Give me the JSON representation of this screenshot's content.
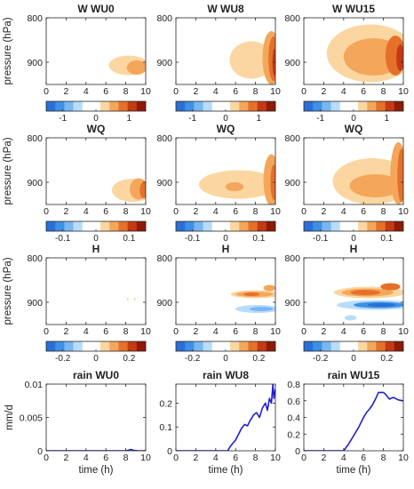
{
  "figure": {
    "colorbar_colors": [
      "#2a6fd6",
      "#3f8fe6",
      "#79b6f2",
      "#b7ddfa",
      "#ffffff",
      "#ffffff",
      "#fbd6a0",
      "#f4a65a",
      "#e5702a",
      "#c43a12",
      "#8e1a06"
    ]
  },
  "chart_data": [
    {
      "type": "heatmap",
      "row": 0,
      "col": 0,
      "title": "W WU0",
      "ylabel": "pressure (hPa)",
      "xlim": [
        0,
        10
      ],
      "ylim": [
        800,
        950
      ],
      "yreverse": true,
      "xticks": [
        "0",
        "2",
        "4",
        "6",
        "8",
        "10"
      ],
      "yticks": [
        "800",
        "900"
      ],
      "colorbar": {
        "range": [
          -1.5,
          1.5
        ],
        "ticks": [
          "-1",
          "0",
          "1"
        ],
        "tick_values": [
          -1,
          0,
          1
        ]
      },
      "blobs": [
        {
          "x": 8.3,
          "y": 907,
          "rx": 2.0,
          "ry": 22,
          "level": 6
        },
        {
          "x": 9.1,
          "y": 912,
          "rx": 1.0,
          "ry": 16,
          "level": 7
        }
      ]
    },
    {
      "type": "heatmap",
      "row": 0,
      "col": 1,
      "title": "W WU8",
      "xlim": [
        0,
        10
      ],
      "ylim": [
        800,
        950
      ],
      "yreverse": true,
      "xticks": [
        "0",
        "2",
        "4",
        "6",
        "8",
        "10"
      ],
      "yticks": [
        "800",
        "900"
      ],
      "colorbar": {
        "range": [
          -1.5,
          1.5
        ],
        "ticks": [
          "-1",
          "0",
          "1"
        ],
        "tick_values": [
          -1,
          0,
          1
        ]
      },
      "blobs": [
        {
          "x": 7.6,
          "y": 895,
          "rx": 2.2,
          "ry": 42,
          "level": 6
        },
        {
          "x": 9.6,
          "y": 890,
          "rx": 0.9,
          "ry": 60,
          "level": 7
        },
        {
          "x": 9.8,
          "y": 892,
          "rx": 0.5,
          "ry": 50,
          "level": 8
        },
        {
          "x": 9.9,
          "y": 900,
          "rx": 0.2,
          "ry": 30,
          "level": 9
        }
      ]
    },
    {
      "type": "heatmap",
      "row": 0,
      "col": 2,
      "title": "W WU15",
      "xlim": [
        0,
        10
      ],
      "ylim": [
        800,
        950
      ],
      "yreverse": true,
      "xticks": [
        "0",
        "2",
        "4",
        "6",
        "8",
        "10"
      ],
      "yticks": [
        "800",
        "900"
      ],
      "colorbar": {
        "range": [
          -1.5,
          1.5
        ],
        "ticks": [
          "-1",
          "0",
          "1"
        ],
        "tick_values": [
          -1,
          0,
          1
        ]
      },
      "blobs": [
        {
          "x": 6.7,
          "y": 880,
          "rx": 4.4,
          "ry": 65,
          "level": 6
        },
        {
          "x": 7.0,
          "y": 888,
          "rx": 3.0,
          "ry": 42,
          "level": 7
        },
        {
          "x": 9.2,
          "y": 885,
          "rx": 1.0,
          "ry": 45,
          "level": 8
        },
        {
          "x": 9.7,
          "y": 890,
          "rx": 0.4,
          "ry": 30,
          "level": 9
        }
      ]
    },
    {
      "type": "heatmap",
      "row": 1,
      "col": 0,
      "title": "WQ",
      "ylabel": "pressure (hPa)",
      "xlim": [
        0,
        10
      ],
      "ylim": [
        800,
        950
      ],
      "yreverse": true,
      "xticks": [
        "0",
        "2",
        "4",
        "6",
        "8",
        "10"
      ],
      "yticks": [
        "800",
        "900"
      ],
      "colorbar": {
        "range": [
          -0.15,
          0.15
        ],
        "ticks": [
          "-0.1",
          "0",
          "0.1"
        ],
        "tick_values": [
          -0.1,
          0,
          0.1
        ]
      },
      "blobs": [
        {
          "x": 8.7,
          "y": 918,
          "rx": 2.1,
          "ry": 26,
          "level": 6
        },
        {
          "x": 9.3,
          "y": 915,
          "rx": 0.9,
          "ry": 24,
          "level": 7
        },
        {
          "x": 9.8,
          "y": 918,
          "rx": 0.4,
          "ry": 18,
          "level": 8
        }
      ]
    },
    {
      "type": "heatmap",
      "row": 1,
      "col": 1,
      "title": "WQ",
      "xlim": [
        0,
        10
      ],
      "ylim": [
        800,
        950
      ],
      "yreverse": true,
      "xticks": [
        "0",
        "2",
        "4",
        "6",
        "8",
        "10"
      ],
      "yticks": [
        "800",
        "900"
      ],
      "colorbar": {
        "range": [
          -0.15,
          0.15
        ],
        "ticks": [
          "-0.1",
          "0",
          "0.1"
        ],
        "tick_values": [
          -0.1,
          0,
          0.1
        ]
      },
      "blobs": [
        {
          "x": 6.3,
          "y": 905,
          "rx": 4.0,
          "ry": 32,
          "level": 6
        },
        {
          "x": 5.9,
          "y": 910,
          "rx": 0.9,
          "ry": 10,
          "level": 7
        },
        {
          "x": 9.6,
          "y": 895,
          "rx": 0.8,
          "ry": 58,
          "level": 7
        },
        {
          "x": 9.85,
          "y": 900,
          "rx": 0.35,
          "ry": 40,
          "level": 8
        }
      ]
    },
    {
      "type": "heatmap",
      "row": 1,
      "col": 2,
      "title": "WQ",
      "xlim": [
        0,
        10
      ],
      "ylim": [
        800,
        950
      ],
      "yreverse": true,
      "xticks": [
        "0",
        "2",
        "4",
        "6",
        "8",
        "10"
      ],
      "yticks": [
        "800",
        "900"
      ],
      "colorbar": {
        "range": [
          -0.15,
          0.15
        ],
        "ticks": [
          "-0.1",
          "0",
          "0.1"
        ],
        "tick_values": [
          -0.1,
          0,
          0.1
        ]
      },
      "blobs": [
        {
          "x": 6.9,
          "y": 898,
          "rx": 4.0,
          "ry": 52,
          "level": 6
        },
        {
          "x": 7.2,
          "y": 908,
          "rx": 2.6,
          "ry": 26,
          "level": 7
        },
        {
          "x": 9.5,
          "y": 880,
          "rx": 0.8,
          "ry": 70,
          "level": 7
        },
        {
          "x": 9.8,
          "y": 885,
          "rx": 0.4,
          "ry": 60,
          "level": 8
        }
      ]
    },
    {
      "type": "heatmap",
      "row": 2,
      "col": 0,
      "title": "H",
      "ylabel": "pressure (hPa)",
      "xlim": [
        0,
        10
      ],
      "ylim": [
        800,
        950
      ],
      "yreverse": true,
      "xticks": [
        "0",
        "2",
        "4",
        "6",
        "8",
        "10"
      ],
      "yticks": [
        "800",
        "900"
      ],
      "colorbar": {
        "range": [
          -0.3,
          0.3
        ],
        "ticks": [
          "-0.2",
          "0",
          "0.2"
        ],
        "tick_values": [
          -0.2,
          0,
          0.2
        ]
      },
      "blobs": [
        {
          "x": 8.2,
          "y": 893,
          "rx": 0.08,
          "ry": 3,
          "level": 6
        },
        {
          "x": 8.9,
          "y": 893,
          "rx": 0.08,
          "ry": 3,
          "level": 6
        }
      ]
    },
    {
      "type": "heatmap",
      "row": 2,
      "col": 1,
      "title": "H",
      "xlim": [
        0,
        10
      ],
      "ylim": [
        800,
        950
      ],
      "yreverse": true,
      "xticks": [
        "0",
        "2",
        "4",
        "6",
        "8",
        "10"
      ],
      "yticks": [
        "800",
        "900"
      ],
      "colorbar": {
        "range": [
          -0.3,
          0.3
        ],
        "ticks": [
          "-0.2",
          "0",
          "0.2"
        ],
        "tick_values": [
          -0.2,
          0,
          0.2
        ]
      },
      "blobs": [
        {
          "x": 8.0,
          "y": 882,
          "rx": 2.5,
          "ry": 9,
          "level": 6
        },
        {
          "x": 7.9,
          "y": 882,
          "rx": 1.9,
          "ry": 6,
          "level": 7
        },
        {
          "x": 7.6,
          "y": 882,
          "rx": 0.8,
          "ry": 4,
          "level": 8
        },
        {
          "x": 9.4,
          "y": 868,
          "rx": 0.6,
          "ry": 7,
          "level": 7
        },
        {
          "x": 8.2,
          "y": 915,
          "rx": 2.2,
          "ry": 9,
          "level": 3
        },
        {
          "x": 8.6,
          "y": 915,
          "rx": 1.2,
          "ry": 5,
          "level": 2
        }
      ]
    },
    {
      "type": "heatmap",
      "row": 2,
      "col": 2,
      "title": "H",
      "xlim": [
        0,
        10
      ],
      "ylim": [
        800,
        950
      ],
      "yreverse": true,
      "xticks": [
        "0",
        "2",
        "4",
        "6",
        "8",
        "10"
      ],
      "yticks": [
        "800",
        "900"
      ],
      "colorbar": {
        "range": [
          -0.3,
          0.3
        ],
        "ticks": [
          "-0.2",
          "0",
          "0.2"
        ],
        "tick_values": [
          -0.2,
          0,
          0.2
        ]
      },
      "blobs": [
        {
          "x": 6.6,
          "y": 878,
          "rx": 3.6,
          "ry": 13,
          "level": 6
        },
        {
          "x": 6.4,
          "y": 878,
          "rx": 2.6,
          "ry": 9,
          "level": 7
        },
        {
          "x": 6.2,
          "y": 878,
          "rx": 1.5,
          "ry": 6,
          "level": 8
        },
        {
          "x": 8.7,
          "y": 865,
          "rx": 1.0,
          "ry": 8,
          "level": 8
        },
        {
          "x": 7.3,
          "y": 906,
          "rx": 4.0,
          "ry": 11,
          "level": 3
        },
        {
          "x": 7.6,
          "y": 906,
          "rx": 2.6,
          "ry": 7,
          "level": 1
        },
        {
          "x": 7.8,
          "y": 906,
          "rx": 1.4,
          "ry": 4,
          "level": 0
        },
        {
          "x": 4.7,
          "y": 935,
          "rx": 0.6,
          "ry": 6,
          "level": 3
        }
      ]
    },
    {
      "type": "line",
      "row": 3,
      "col": 0,
      "title": "rain WU0",
      "xlabel": "time (h)",
      "ylabel": "mm/d",
      "xlim": [
        0,
        10
      ],
      "ylim": [
        0,
        0.01
      ],
      "xticks": [
        "0",
        "2",
        "4",
        "6",
        "8",
        "10"
      ],
      "yticks": [
        "0",
        "0.005",
        "0.01"
      ],
      "ytick_values": [
        0,
        0.005,
        0.01
      ],
      "x": [
        0,
        8.0,
        8.3,
        8.5,
        8.8,
        9.2,
        9.6,
        10
      ],
      "y": [
        0,
        0,
        0.0001,
        0.0002,
        5e-05,
        0,
        0,
        0
      ]
    },
    {
      "type": "line",
      "row": 3,
      "col": 1,
      "title": "rain WU8",
      "xlabel": "time (h)",
      "xlim": [
        0,
        10
      ],
      "ylim": [
        0,
        0.28
      ],
      "xticks": [
        "0",
        "2",
        "4",
        "6",
        "8",
        "10"
      ],
      "yticks": [
        "0",
        "0.1",
        "0.2"
      ],
      "ytick_values": [
        0,
        0.1,
        0.2
      ],
      "x": [
        0,
        5.2,
        5.5,
        6.0,
        6.3,
        6.6,
        6.9,
        7.2,
        7.5,
        7.8,
        8.1,
        8.4,
        8.7,
        9.0,
        9.2,
        9.4,
        9.6,
        9.75,
        9.85,
        10
      ],
      "y": [
        0,
        0,
        0.02,
        0.045,
        0.07,
        0.095,
        0.11,
        0.105,
        0.13,
        0.15,
        0.16,
        0.14,
        0.18,
        0.2,
        0.17,
        0.22,
        0.2,
        0.28,
        0.22,
        0.26
      ]
    },
    {
      "type": "line",
      "row": 3,
      "col": 2,
      "title": "rain WU15",
      "xlabel": "time (h)",
      "xlim": [
        0,
        10
      ],
      "ylim": [
        0,
        0.8
      ],
      "xticks": [
        "0",
        "2",
        "4",
        "6",
        "8",
        "10"
      ],
      "yticks": [
        "0",
        "0.2",
        "0.4",
        "0.6",
        "0.8"
      ],
      "ytick_values": [
        0,
        0.2,
        0.4,
        0.6,
        0.8
      ],
      "x": [
        0,
        4.0,
        4.5,
        5.0,
        5.5,
        6.0,
        6.3,
        6.6,
        6.9,
        7.2,
        7.5,
        8.0,
        8.2,
        8.6,
        9.0,
        9.5,
        10
      ],
      "y": [
        0,
        0,
        0.08,
        0.18,
        0.28,
        0.4,
        0.46,
        0.5,
        0.55,
        0.62,
        0.7,
        0.7,
        0.68,
        0.62,
        0.64,
        0.61,
        0.6
      ]
    }
  ]
}
